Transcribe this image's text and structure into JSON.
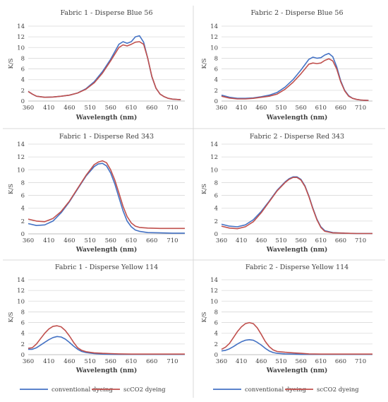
{
  "figure": {
    "legend": [
      {
        "label": "conventional dyeing",
        "color": "#4472C4"
      },
      {
        "label": "scCO2 dyeing",
        "color": "#C0504D"
      }
    ],
    "divider_color": "#d9d9d9",
    "grid_color": "#d9d9d9",
    "axis_color": "#bfbfbf"
  },
  "chart_data": [
    {
      "type": "line",
      "title": "Fabric 1 - Disperse Blue 56",
      "xlabel": "Wavelength (nm)",
      "ylabel": "K/S",
      "xlim": [
        360,
        740
      ],
      "ylim": [
        0,
        14
      ],
      "xticks": [
        360,
        410,
        460,
        510,
        560,
        610,
        660,
        710
      ],
      "yticks": [
        0,
        2,
        4,
        6,
        8,
        10,
        12,
        14
      ],
      "grid": "horizontal",
      "series": [
        {
          "name": "conventional dyeing",
          "color": "#4472C4",
          "x": [
            360,
            370,
            380,
            400,
            420,
            440,
            460,
            480,
            500,
            520,
            540,
            560,
            580,
            590,
            600,
            610,
            620,
            630,
            640,
            650,
            660,
            670,
            680,
            690,
            700,
            710,
            720,
            730
          ],
          "y": [
            1.8,
            1.3,
            0.9,
            0.7,
            0.75,
            0.9,
            1.1,
            1.5,
            2.3,
            3.6,
            5.5,
            7.8,
            10.6,
            11.1,
            10.8,
            11.1,
            12.0,
            12.2,
            11.0,
            8.0,
            4.5,
            2.4,
            1.3,
            0.8,
            0.5,
            0.35,
            0.3,
            0.25
          ]
        },
        {
          "name": "scCO2 dyeing",
          "color": "#C0504D",
          "x": [
            360,
            370,
            380,
            400,
            420,
            440,
            460,
            480,
            500,
            520,
            540,
            560,
            580,
            590,
            600,
            610,
            620,
            630,
            640,
            650,
            660,
            670,
            680,
            690,
            700,
            710,
            720,
            730
          ],
          "y": [
            1.8,
            1.3,
            0.9,
            0.7,
            0.75,
            0.9,
            1.1,
            1.5,
            2.2,
            3.4,
            5.2,
            7.5,
            10.0,
            10.5,
            10.3,
            10.6,
            11.0,
            11.1,
            10.6,
            8.0,
            4.6,
            2.4,
            1.3,
            0.8,
            0.5,
            0.35,
            0.3,
            0.25
          ]
        }
      ]
    },
    {
      "type": "line",
      "title": "Fabric 2 - Disperse Blue 56",
      "xlabel": "Wavelength (nm)",
      "ylabel": "K/S",
      "xlim": [
        360,
        740
      ],
      "ylim": [
        0,
        14
      ],
      "xticks": [
        360,
        410,
        460,
        510,
        560,
        610,
        660,
        710
      ],
      "yticks": [
        0,
        2,
        4,
        6,
        8,
        10,
        12,
        14
      ],
      "grid": "horizontal",
      "series": [
        {
          "name": "conventional dyeing",
          "color": "#4472C4",
          "x": [
            360,
            380,
            400,
            420,
            440,
            460,
            480,
            500,
            520,
            540,
            560,
            580,
            590,
            600,
            610,
            620,
            630,
            640,
            650,
            660,
            670,
            680,
            690,
            700,
            710,
            720,
            730
          ],
          "y": [
            1.1,
            0.7,
            0.5,
            0.5,
            0.6,
            0.8,
            1.1,
            1.6,
            2.6,
            4.0,
            5.8,
            7.8,
            8.2,
            8.0,
            8.1,
            8.6,
            8.9,
            8.3,
            6.4,
            3.8,
            2.0,
            1.0,
            0.5,
            0.3,
            0.2,
            0.15,
            0.1
          ]
        },
        {
          "name": "scCO2 dyeing",
          "color": "#C0504D",
          "x": [
            360,
            380,
            400,
            420,
            440,
            460,
            480,
            500,
            520,
            540,
            560,
            580,
            590,
            600,
            610,
            620,
            630,
            640,
            650,
            660,
            670,
            680,
            690,
            700,
            710,
            720,
            730
          ],
          "y": [
            0.9,
            0.55,
            0.4,
            0.4,
            0.5,
            0.7,
            0.9,
            1.3,
            2.2,
            3.5,
            5.1,
            6.9,
            7.1,
            7.0,
            7.1,
            7.6,
            7.9,
            7.5,
            6.0,
            3.6,
            1.9,
            0.9,
            0.5,
            0.3,
            0.2,
            0.15,
            0.1
          ]
        }
      ]
    },
    {
      "type": "line",
      "title": "Fabric 1 - Disperse Red 343",
      "xlabel": "Wavelength (nm)",
      "ylabel": "K/S",
      "xlim": [
        360,
        740
      ],
      "ylim": [
        0,
        14
      ],
      "xticks": [
        360,
        410,
        460,
        510,
        560,
        610,
        660,
        710
      ],
      "yticks": [
        0,
        2,
        4,
        6,
        8,
        10,
        12,
        14
      ],
      "grid": "horizontal",
      "series": [
        {
          "name": "conventional dyeing",
          "color": "#4472C4",
          "x": [
            360,
            380,
            400,
            420,
            440,
            460,
            480,
            500,
            520,
            530,
            540,
            550,
            560,
            570,
            580,
            590,
            600,
            610,
            620,
            630,
            650,
            680,
            710,
            740
          ],
          "y": [
            1.6,
            1.3,
            1.4,
            2.0,
            3.3,
            5.0,
            7.0,
            9.0,
            10.5,
            10.9,
            11.0,
            10.6,
            9.5,
            7.8,
            5.7,
            3.6,
            2.0,
            1.1,
            0.6,
            0.4,
            0.2,
            0.15,
            0.1,
            0.1
          ]
        },
        {
          "name": "scCO2 dyeing",
          "color": "#C0504D",
          "x": [
            360,
            380,
            400,
            420,
            440,
            460,
            480,
            500,
            520,
            530,
            540,
            550,
            560,
            570,
            580,
            590,
            600,
            610,
            620,
            630,
            650,
            680,
            710,
            740
          ],
          "y": [
            2.3,
            2.0,
            1.9,
            2.4,
            3.5,
            5.1,
            7.1,
            9.1,
            10.8,
            11.2,
            11.4,
            11.1,
            10.0,
            8.4,
            6.4,
            4.3,
            2.7,
            1.7,
            1.2,
            1.0,
            0.9,
            0.85,
            0.85,
            0.85
          ]
        }
      ]
    },
    {
      "type": "line",
      "title": "Fabric 2 - Disperse Red 343",
      "xlabel": "Wavelength (nm)",
      "ylabel": "K/S",
      "xlim": [
        360,
        740
      ],
      "ylim": [
        0,
        14
      ],
      "xticks": [
        360,
        410,
        460,
        510,
        560,
        610,
        660,
        710
      ],
      "yticks": [
        0,
        2,
        4,
        6,
        8,
        10,
        12,
        14
      ],
      "grid": "horizontal",
      "series": [
        {
          "name": "conventional dyeing",
          "color": "#4472C4",
          "x": [
            360,
            380,
            400,
            420,
            440,
            460,
            480,
            500,
            520,
            530,
            540,
            550,
            560,
            570,
            580,
            590,
            600,
            610,
            620,
            640,
            670,
            700,
            740
          ],
          "y": [
            1.5,
            1.2,
            1.1,
            1.4,
            2.2,
            3.5,
            5.1,
            6.8,
            8.1,
            8.6,
            8.9,
            8.9,
            8.5,
            7.5,
            5.9,
            4.0,
            2.3,
            1.1,
            0.5,
            0.2,
            0.1,
            0.05,
            0.05
          ]
        },
        {
          "name": "scCO2 dyeing",
          "color": "#C0504D",
          "x": [
            360,
            380,
            400,
            420,
            440,
            460,
            480,
            500,
            520,
            530,
            540,
            550,
            560,
            570,
            580,
            590,
            600,
            610,
            620,
            640,
            670,
            700,
            740
          ],
          "y": [
            1.2,
            0.9,
            0.8,
            1.1,
            1.9,
            3.3,
            5.0,
            6.7,
            8.0,
            8.5,
            8.8,
            8.8,
            8.4,
            7.4,
            5.8,
            3.9,
            2.2,
            1.0,
            0.4,
            0.15,
            0.1,
            0.05,
            0.05
          ]
        }
      ]
    },
    {
      "type": "line",
      "title": "Fabric 1 - Disperse Yellow 114",
      "xlabel": "Wavelength (nm)",
      "ylabel": "K/S",
      "xlim": [
        360,
        740
      ],
      "ylim": [
        0,
        14
      ],
      "xticks": [
        360,
        410,
        460,
        510,
        560,
        610,
        660,
        710
      ],
      "yticks": [
        0,
        2,
        4,
        6,
        8,
        10,
        12,
        14
      ],
      "grid": "horizontal",
      "series": [
        {
          "name": "conventional dyeing",
          "color": "#4472C4",
          "x": [
            360,
            370,
            380,
            390,
            400,
            410,
            420,
            430,
            440,
            450,
            460,
            470,
            480,
            490,
            500,
            520,
            540,
            560,
            580,
            610,
            650,
            700,
            740
          ],
          "y": [
            1.0,
            1.0,
            1.3,
            1.8,
            2.3,
            2.8,
            3.2,
            3.4,
            3.3,
            2.9,
            2.3,
            1.6,
            1.0,
            0.6,
            0.4,
            0.2,
            0.1,
            0.08,
            0.05,
            0.05,
            0.05,
            0.05,
            0.05
          ]
        },
        {
          "name": "scCO2 dyeing",
          "color": "#C0504D",
          "x": [
            360,
            370,
            380,
            390,
            400,
            410,
            420,
            430,
            440,
            450,
            460,
            470,
            480,
            490,
            500,
            520,
            540,
            560,
            580,
            610,
            650,
            700,
            740
          ],
          "y": [
            1.2,
            1.3,
            2.0,
            3.0,
            4.0,
            4.8,
            5.3,
            5.4,
            5.2,
            4.5,
            3.5,
            2.3,
            1.3,
            0.8,
            0.55,
            0.35,
            0.25,
            0.2,
            0.15,
            0.1,
            0.1,
            0.1,
            0.1
          ]
        }
      ]
    },
    {
      "type": "line",
      "title": "Fabric 2 - Disperse Yellow 114",
      "xlabel": "Wavelength (nm)",
      "ylabel": "K/S",
      "xlim": [
        360,
        740
      ],
      "ylim": [
        0,
        14
      ],
      "xticks": [
        360,
        410,
        460,
        510,
        560,
        610,
        660,
        710
      ],
      "yticks": [
        0,
        2,
        4,
        6,
        8,
        10,
        12,
        14
      ],
      "grid": "horizontal",
      "series": [
        {
          "name": "conventional dyeing",
          "color": "#4472C4",
          "x": [
            360,
            370,
            380,
            390,
            400,
            410,
            420,
            430,
            440,
            450,
            460,
            470,
            480,
            490,
            500,
            520,
            540,
            560,
            580,
            610,
            650,
            700,
            740
          ],
          "y": [
            0.7,
            0.8,
            1.1,
            1.5,
            2.0,
            2.4,
            2.7,
            2.8,
            2.7,
            2.3,
            1.8,
            1.2,
            0.7,
            0.4,
            0.25,
            0.15,
            0.1,
            0.05,
            0.05,
            0.05,
            0.05,
            0.05,
            0.05
          ]
        },
        {
          "name": "scCO2 dyeing",
          "color": "#C0504D",
          "x": [
            360,
            370,
            380,
            390,
            400,
            410,
            420,
            430,
            440,
            450,
            460,
            470,
            480,
            490,
            500,
            520,
            540,
            560,
            580,
            610,
            650,
            700,
            740
          ],
          "y": [
            1.0,
            1.4,
            2.1,
            3.2,
            4.3,
            5.2,
            5.8,
            6.0,
            5.8,
            5.0,
            3.8,
            2.5,
            1.5,
            0.9,
            0.6,
            0.45,
            0.35,
            0.25,
            0.15,
            0.1,
            0.1,
            0.1,
            0.1
          ]
        }
      ]
    }
  ]
}
